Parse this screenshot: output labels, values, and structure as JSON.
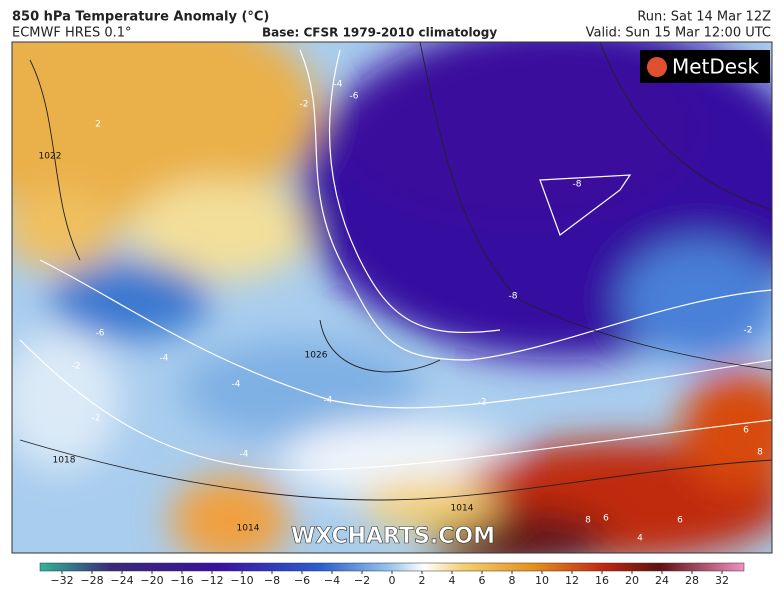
{
  "header": {
    "title": "850 hPa Temperature Anomaly (°C)",
    "model": "ECMWF HRES 0.1°",
    "base": "Base: CFSR 1979-2010 climatology",
    "run": "Run: Sat 14 Mar 12Z",
    "valid": "Valid: Sun 15 Mar 12:00 UTC"
  },
  "map": {
    "logo": "MetDesk",
    "watermark": "WXCHARTS.COM",
    "contour_labels": [
      "-4",
      "-6",
      "-2",
      "-8",
      "-8",
      "-6",
      "-4",
      "-2",
      "-4",
      "-4",
      "-2",
      "-2",
      "-4",
      "1026",
      "1022",
      "1018",
      "1014",
      "1014",
      "6",
      "8",
      "6",
      "8",
      "6",
      "4",
      "2",
      "-2"
    ]
  },
  "colorbar": {
    "ticks": [
      "−32",
      "−28",
      "−24",
      "−20",
      "−16",
      "−12",
      "−10",
      "−8",
      "−6",
      "−4",
      "−2",
      "0",
      "2",
      "4",
      "6",
      "8",
      "10",
      "12",
      "16",
      "20",
      "24",
      "28",
      "32"
    ]
  }
}
